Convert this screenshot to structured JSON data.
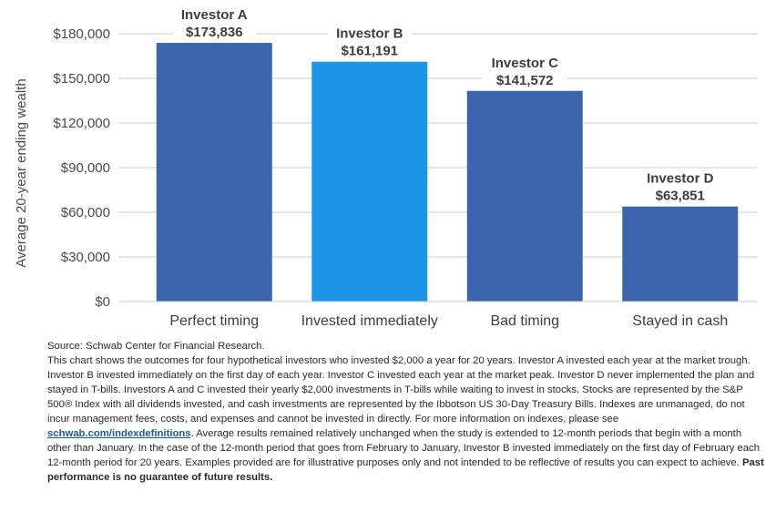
{
  "chart_data": {
    "type": "bar",
    "categories": [
      "Perfect timing",
      "Invested immediately",
      "Bad timing",
      "Stayed in cash"
    ],
    "investors": [
      "Investor A",
      "Investor B",
      "Investor C",
      "Investor D"
    ],
    "values": [
      173836,
      161191,
      141572,
      63851
    ],
    "value_labels": [
      "$173,836",
      "$161,191",
      "$141,572",
      "$63,851"
    ],
    "bar_colors": [
      "#3b64ad",
      "#1d95e6",
      "#3b64ad",
      "#3b64ad"
    ],
    "ylabel": "Average 20-year ending wealth",
    "ylim": [
      0,
      180000
    ],
    "yticks": [
      0,
      30000,
      60000,
      90000,
      120000,
      150000,
      180000
    ],
    "ytick_labels": [
      "$0",
      "$30,000",
      "$60,000",
      "$90,000",
      "$120,000",
      "$150,000",
      "$180,000"
    ],
    "grid": true
  },
  "notes": {
    "source": "Source: Schwab Center for Financial Research.",
    "body_before_link": "This chart shows the outcomes for four hypothetical investors who invested $2,000 a year for 20 years. Investor A invested each year at the market trough. Investor B invested immediately on the first day of each year. Investor C invested each year at the market peak. Investor D never implemented the plan and stayed in T-bills. Investors A and C invested their yearly $2,000 investments in T-bills while waiting to invest in stocks. Stocks are represented by the S&P 500® Index with all dividends invested, and cash investments are represented by the Ibbotson US 30-Day Treasury Bills. Indexes are unmanaged, do not incur management fees, costs, and expenses and cannot be invested in directly. For more information on indexes, please see ",
    "link": "schwab.com/indexdefinitions",
    "body_after_link": ". Average results remained relatively unchanged when the study is extended to 12-month periods that begin with a month other than January. In the case of the 12-month period that goes from February to January, Investor B invested immediately on the first day of February each 12-month period for 20 years. Examples provided are for illustrative purposes only and not intended to be reflective of results you can expect to achieve. ",
    "disclaimer": "Past performance is no guarantee of future results."
  }
}
